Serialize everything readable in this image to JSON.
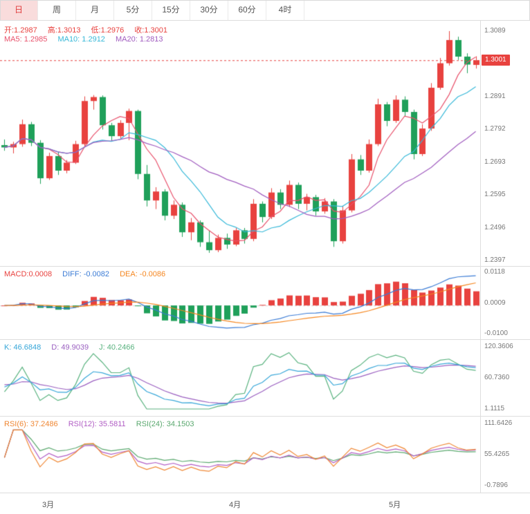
{
  "tabs": {
    "items": [
      {
        "label": "日",
        "active": true
      },
      {
        "label": "周",
        "active": false
      },
      {
        "label": "月",
        "active": false
      },
      {
        "label": "5分",
        "active": false
      },
      {
        "label": "15分",
        "active": false
      },
      {
        "label": "30分",
        "active": false
      },
      {
        "label": "60分",
        "active": false
      },
      {
        "label": "4时",
        "active": false
      }
    ]
  },
  "main": {
    "legend_ohlc": {
      "open": "开:1.2987",
      "high": "高:1.3013",
      "low": "低:1.2976",
      "close": "收:1.3001"
    },
    "legend_ma": {
      "ma5": "MA5: 1.2985",
      "ma10": "MA10: 1.2912",
      "ma20": "MA20: 1.2813"
    },
    "price_tag": "1.3001",
    "axis_labels": [
      "1.3089",
      "1.2990",
      "1.2891",
      "1.2792",
      "1.2693",
      "1.2595",
      "1.2496",
      "1.2397"
    ]
  },
  "macd": {
    "legend": {
      "macd": "MACD:0.0008",
      "diff": "DIFF: -0.0082",
      "dea": "DEA: -0.0086"
    },
    "axis_labels": [
      "0.0118",
      "0.0009",
      "-0.0100"
    ]
  },
  "kdj": {
    "legend": {
      "k": "K: 46.6848",
      "d": "D: 49.9039",
      "j": "J: 40.2466"
    },
    "axis_labels": [
      "120.3606",
      "60.7360",
      "1.1115"
    ]
  },
  "rsi": {
    "legend": {
      "rsi6": "RSI(6): 37.2486",
      "rsi12": "RSI(12): 35.5811",
      "rsi24": "RSI(24): 34.1503"
    },
    "axis_labels": [
      "111.6426",
      "55.4265",
      "-0.7896"
    ]
  },
  "colors": {
    "up": "#e8423f",
    "down": "#1fa05a",
    "ma5": "#e8516b",
    "ma10": "#36b8d8",
    "ma20": "#a05cbf",
    "diff": "#3a7bd5",
    "dea": "#f5861f",
    "k": "#36a6d8",
    "d": "#9a5fc0",
    "j": "#58b27e",
    "rsi6": "#ef8632",
    "rsi12": "#b05cc4",
    "rsi24": "#5aa86e",
    "price_line": "#e8423f",
    "zero_line": "#cfcfcf",
    "axis_text": "#777777",
    "border": "#dddddd"
  },
  "chart_data": {
    "type": "candlestick",
    "timeframe": "日",
    "ohlc_current": {
      "open": 1.2987,
      "high": 1.3013,
      "low": 1.2976,
      "close": 1.3001
    },
    "x_labels": [
      {
        "label": "3月",
        "index": 5
      },
      {
        "label": "4月",
        "index": 26
      },
      {
        "label": "5月",
        "index": 44
      }
    ],
    "panels": {
      "price": {
        "ylim": [
          1.2397,
          1.3089
        ],
        "ticks": [
          1.3089,
          1.299,
          1.2891,
          1.2792,
          1.2693,
          1.2595,
          1.2496,
          1.2397
        ],
        "current_price": 1.3001,
        "ma": {
          "ma5": 1.2985,
          "ma10": 1.2912,
          "ma20": 1.2813,
          "periods": [
            5,
            10,
            20
          ]
        }
      },
      "macd": {
        "ylim": [
          -0.01,
          0.0118
        ],
        "ticks": [
          0.0118,
          0.0009,
          -0.01
        ],
        "values": {
          "macd": 0.0008,
          "diff": -0.0082,
          "dea": -0.0086
        },
        "params": [
          12,
          26,
          9
        ]
      },
      "kdj": {
        "ylim": [
          1.1115,
          120.3606
        ],
        "ticks": [
          120.3606,
          60.736,
          1.1115
        ],
        "values": {
          "k": 46.6848,
          "d": 49.9039,
          "j": 40.2466
        },
        "params": [
          9,
          3,
          3
        ]
      },
      "rsi": {
        "ylim": [
          -0.7896,
          111.6426
        ],
        "ticks": [
          111.6426,
          55.4265,
          -0.7896
        ],
        "values": {
          "rsi6": 37.2486,
          "rsi12": 35.5811,
          "rsi24": 34.1503
        },
        "params": [
          6,
          12,
          24
        ]
      }
    },
    "candles": [
      [
        1.2745,
        1.2762,
        1.2728,
        1.2738
      ],
      [
        1.2738,
        1.2755,
        1.272,
        1.2748
      ],
      [
        1.2748,
        1.2822,
        1.274,
        1.2808
      ],
      [
        1.2808,
        1.2815,
        1.2742,
        1.2752
      ],
      [
        1.2752,
        1.276,
        1.2628,
        1.2645
      ],
      [
        1.2645,
        1.2722,
        1.264,
        1.2712
      ],
      [
        1.2712,
        1.2725,
        1.2655,
        1.2668
      ],
      [
        1.2668,
        1.27,
        1.266,
        1.2692
      ],
      [
        1.2692,
        1.2758,
        1.2688,
        1.2748
      ],
      [
        1.2748,
        1.2892,
        1.2742,
        1.2878
      ],
      [
        1.2878,
        1.2896,
        1.2852,
        1.289
      ],
      [
        1.289,
        1.2895,
        1.2792,
        1.2805
      ],
      [
        1.2805,
        1.2812,
        1.2758,
        1.2772
      ],
      [
        1.2772,
        1.282,
        1.2765,
        1.2812
      ],
      [
        1.2812,
        1.2855,
        1.276,
        1.2848
      ],
      [
        1.2848,
        1.2852,
        1.2642,
        1.2658
      ],
      [
        1.2658,
        1.2685,
        1.256,
        1.2578
      ],
      [
        1.2578,
        1.2618,
        1.2552,
        1.2605
      ],
      [
        1.2605,
        1.2612,
        1.2518,
        1.2532
      ],
      [
        1.2532,
        1.2578,
        1.2522,
        1.2565
      ],
      [
        1.2565,
        1.2572,
        1.2468,
        1.2482
      ],
      [
        1.2482,
        1.2525,
        1.2458,
        1.2512
      ],
      [
        1.2512,
        1.2518,
        1.2438,
        1.2452
      ],
      [
        1.2452,
        1.2488,
        1.242,
        1.2428
      ],
      [
        1.2428,
        1.2475,
        1.2422,
        1.2465
      ],
      [
        1.2465,
        1.2478,
        1.2432,
        1.2445
      ],
      [
        1.2445,
        1.2495,
        1.244,
        1.2488
      ],
      [
        1.2488,
        1.2495,
        1.2448,
        1.2462
      ],
      [
        1.2462,
        1.2582,
        1.2455,
        1.2568
      ],
      [
        1.2568,
        1.2575,
        1.2512,
        1.2528
      ],
      [
        1.2528,
        1.2615,
        1.2522,
        1.2602
      ],
      [
        1.2602,
        1.2612,
        1.2552,
        1.2565
      ],
      [
        1.2565,
        1.2638,
        1.2558,
        1.2625
      ],
      [
        1.2625,
        1.2632,
        1.2552,
        1.2568
      ],
      [
        1.2568,
        1.2598,
        1.2548,
        1.2588
      ],
      [
        1.2588,
        1.2595,
        1.2532,
        1.2545
      ],
      [
        1.2545,
        1.2585,
        1.2538,
        1.2575
      ],
      [
        1.2575,
        1.2582,
        1.2438,
        1.2455
      ],
      [
        1.2455,
        1.2562,
        1.2448,
        1.2548
      ],
      [
        1.2548,
        1.2718,
        1.2542,
        1.2702
      ],
      [
        1.2702,
        1.2715,
        1.2655,
        1.2668
      ],
      [
        1.2668,
        1.2762,
        1.2662,
        1.2748
      ],
      [
        1.2748,
        1.2885,
        1.2742,
        1.2868
      ],
      [
        1.2868,
        1.2875,
        1.2802,
        1.2818
      ],
      [
        1.2818,
        1.2895,
        1.2812,
        1.2882
      ],
      [
        1.2882,
        1.2892,
        1.2832,
        1.2845
      ],
      [
        1.2845,
        1.2852,
        1.2702,
        1.2718
      ],
      [
        1.2718,
        1.2808,
        1.2712,
        1.2795
      ],
      [
        1.2795,
        1.2932,
        1.2788,
        1.2918
      ],
      [
        1.2918,
        1.3008,
        1.2912,
        1.2992
      ],
      [
        1.2992,
        1.3089,
        1.2985,
        1.3062
      ],
      [
        1.3062,
        1.3072,
        1.3002,
        1.3012
      ],
      [
        1.3012,
        1.3022,
        1.2962,
        1.2988
      ],
      [
        1.2987,
        1.3013,
        1.2976,
        1.3001
      ]
    ]
  }
}
